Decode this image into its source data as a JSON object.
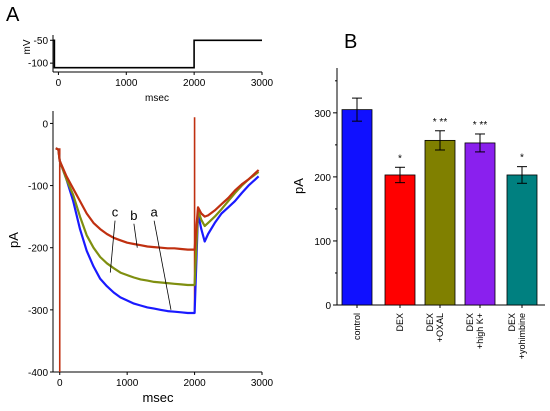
{
  "panels": {
    "a_letter": "A",
    "b_letter": "B"
  },
  "colors": {
    "trace_a": "#1a1aff",
    "trace_b": "#c03010",
    "trace_c": "#7f8f10",
    "bar_control": "#1010ff",
    "bar_dex": "#ff0000",
    "bar_oxal": "#808000",
    "bar_highk": "#8a20ee",
    "bar_yohimbine": "#008080",
    "transient": "#c03010"
  },
  "chart_data": [
    {
      "type": "line",
      "panel": "A-protocol",
      "ylabel": "mV",
      "xlabel": "msec",
      "xlim": [
        -80,
        3000
      ],
      "ylim": [
        -115,
        -45
      ],
      "xticks": [
        "0",
        "1000",
        "2000",
        "3000"
      ],
      "yticks": [
        "-50",
        "-100"
      ],
      "series": [
        {
          "x": [
            -80,
            -60,
            -60,
            2000,
            2000,
            3000
          ],
          "y": [
            -50,
            -50,
            -110,
            -110,
            -50,
            -50
          ]
        }
      ]
    },
    {
      "type": "line",
      "panel": "A-current",
      "xlabel": "msec",
      "ylabel": "pA",
      "xlim": [
        -100,
        3000
      ],
      "ylim": [
        -400,
        20
      ],
      "xticks": [
        "0",
        "1000",
        "2000",
        "3000"
      ],
      "yticks": [
        "0",
        "-100",
        "-200",
        "-300",
        "-400"
      ],
      "series": [
        {
          "name": "a",
          "color_key": "trace_a",
          "x": [
            -60,
            -20,
            0,
            100,
            200,
            300,
            400,
            500,
            600,
            700,
            800,
            900,
            1000,
            1100,
            1200,
            1300,
            1400,
            1500,
            1600,
            1700,
            1800,
            1900,
            2000,
            2050,
            2100,
            2150,
            2200,
            2300,
            2400,
            2500,
            2600,
            2700,
            2800,
            2900,
            2950
          ],
          "y": [
            -40,
            -42,
            -60,
            -90,
            -125,
            -170,
            -205,
            -230,
            -250,
            -262,
            -272,
            -280,
            -285,
            -290,
            -293,
            -296,
            -298,
            -300,
            -302,
            -303,
            -304,
            -305,
            -305,
            -145,
            -170,
            -190,
            -178,
            -160,
            -145,
            -135,
            -125,
            -112,
            -100,
            -90,
            -85
          ]
        },
        {
          "name": "b",
          "color_key": "trace_b",
          "x": [
            -60,
            -20,
            0,
            100,
            200,
            300,
            400,
            500,
            600,
            700,
            800,
            900,
            1000,
            1100,
            1200,
            1300,
            1400,
            1500,
            1600,
            1700,
            1800,
            1900,
            2000,
            2050,
            2100,
            2150,
            2200,
            2300,
            2400,
            2500,
            2600,
            2700,
            2800,
            2900,
            2950
          ],
          "y": [
            -40,
            -42,
            -60,
            -85,
            -105,
            -125,
            -145,
            -160,
            -170,
            -178,
            -184,
            -188,
            -192,
            -194,
            -196,
            -198,
            -199,
            -200,
            -201,
            -201,
            -202,
            -203,
            -203,
            -135,
            -145,
            -150,
            -148,
            -140,
            -130,
            -120,
            -108,
            -98,
            -90,
            -80,
            -75
          ]
        },
        {
          "name": "c",
          "color_key": "trace_c",
          "x": [
            -60,
            -20,
            0,
            100,
            200,
            300,
            400,
            500,
            600,
            700,
            800,
            900,
            1000,
            1100,
            1200,
            1300,
            1400,
            1500,
            1600,
            1700,
            1800,
            1900,
            2000,
            2050,
            2100,
            2150,
            2200,
            2300,
            2400,
            2500,
            2600,
            2700,
            2800,
            2900,
            2950
          ],
          "y": [
            -40,
            -42,
            -60,
            -90,
            -115,
            -150,
            -180,
            -200,
            -215,
            -225,
            -233,
            -240,
            -244,
            -248,
            -251,
            -253,
            -255,
            -256,
            -257,
            -258,
            -259,
            -260,
            -260,
            -140,
            -155,
            -165,
            -160,
            -150,
            -138,
            -125,
            -112,
            -100,
            -90,
            -82,
            -78
          ]
        }
      ],
      "annotations": [
        {
          "text": "a",
          "x": 1400,
          "y": -150,
          "arrow_to": [
            1650,
            -300
          ]
        },
        {
          "text": "b",
          "x": 1100,
          "y": -155,
          "arrow_to": [
            1150,
            -200
          ]
        },
        {
          "text": "c",
          "x": 820,
          "y": -150,
          "arrow_to": [
            750,
            -240
          ]
        }
      ]
    },
    {
      "type": "bar",
      "panel": "B",
      "ylabel": "pA",
      "ylim": [
        0,
        370
      ],
      "yticks": [
        "0",
        "100",
        "200",
        "300"
      ],
      "categories": [
        "control",
        "DEX",
        "DEX\n+OXAL",
        "DEX\n+high K+",
        "DEX\n+yohimbine"
      ],
      "values": [
        305,
        203,
        257,
        253,
        203
      ],
      "errors": [
        18,
        12,
        15,
        14,
        13
      ],
      "significance": [
        "",
        "*",
        "* **",
        "* **",
        "*"
      ],
      "color_keys": [
        "bar_control",
        "bar_dex",
        "bar_oxal",
        "bar_highk",
        "bar_yohimbine"
      ]
    }
  ]
}
